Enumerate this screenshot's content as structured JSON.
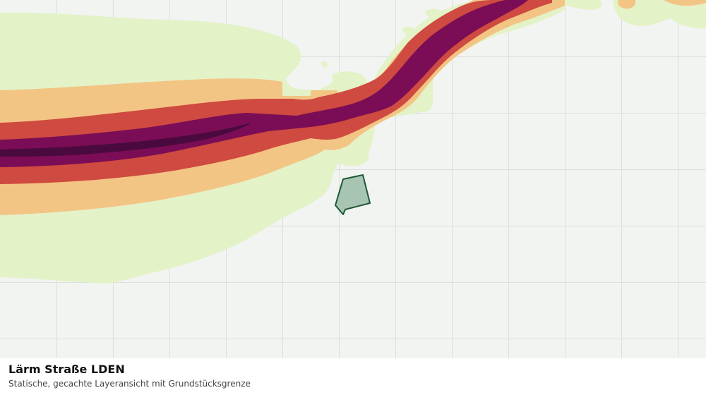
{
  "layer": {
    "title": "Lärm Straße LDEN",
    "subtitle": "Statische, gecachte Layeransicht mit Grundstücksgrenze"
  },
  "colors": {
    "background": "#f2f4f2",
    "grid": "#dcdfdc",
    "noise_band_1": "#e4f2c8",
    "noise_band_2": "#f3c585",
    "noise_band_3": "#cf4a40",
    "noise_band_4": "#7a0d55",
    "noise_band_5": "#4b0a3f",
    "parcel_fill": "#a8c4b2",
    "parcel_stroke": "#1d5a34"
  }
}
